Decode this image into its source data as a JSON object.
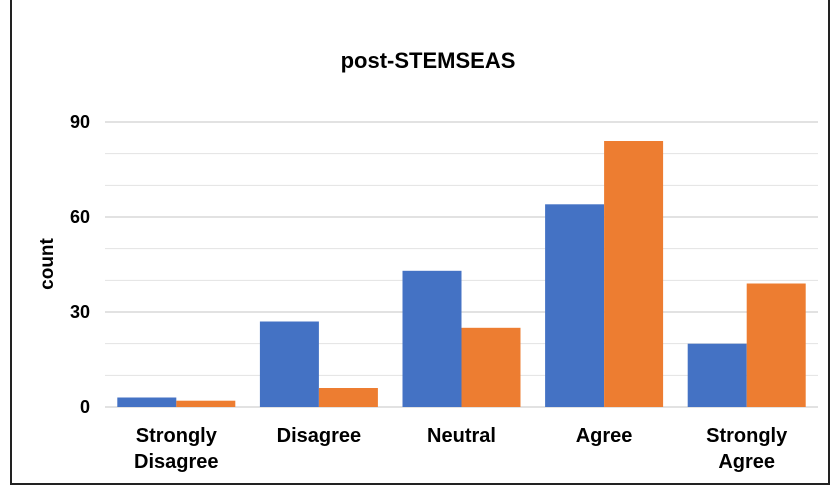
{
  "chart_data": {
    "type": "bar",
    "title": "post-STEMSEAS",
    "xlabel": "",
    "ylabel": "count",
    "categories": [
      [
        "Strongly",
        "Disagree"
      ],
      [
        "Disagree"
      ],
      [
        "Neutral"
      ],
      [
        "Agree"
      ],
      [
        "Strongly",
        "Agree"
      ]
    ],
    "series": [
      {
        "values": [
          3,
          27,
          43,
          64,
          20
        ],
        "color": "#4472C4"
      },
      {
        "values": [
          2,
          6,
          25,
          84,
          39
        ],
        "color": "#ED7D31"
      }
    ],
    "ylim": [
      0,
      90
    ],
    "yticks": [
      0,
      30,
      60,
      90
    ],
    "minor_grid_step": 10,
    "grid": true,
    "legend": "none"
  }
}
